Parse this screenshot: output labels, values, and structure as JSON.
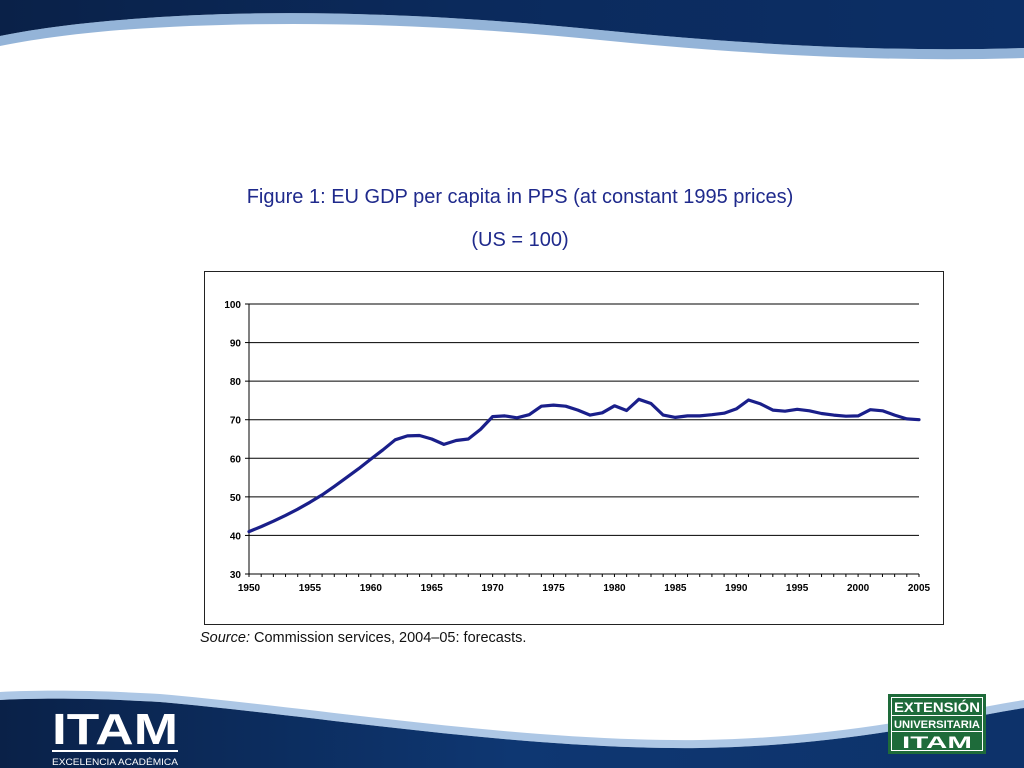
{
  "title_line1": "Figure 1: EU GDP per capita in PPS (at constant 1995 prices)",
  "title_line2": "(US = 100)",
  "source_prefix": "Source:",
  "source_text": " Commission services, 2004–05: forecasts.",
  "logo_left": {
    "word": "ITAM",
    "tagline": "EXCELENCIA ACADÉMICA"
  },
  "logo_right": {
    "line1": "EXTENSIÓN",
    "line2": "UNIVERSITARIA",
    "line3": "ITAM"
  },
  "colors": {
    "line": "#1a1f8a",
    "title": "#1f2a8c",
    "banner_dark": "#06193a",
    "banner_mid": "#1a4e8e"
  },
  "chart_data": {
    "type": "line",
    "xlim": [
      1950,
      2005
    ],
    "ylim": [
      30,
      100
    ],
    "x_ticks": [
      1950,
      1955,
      1960,
      1965,
      1970,
      1975,
      1980,
      1985,
      1990,
      1995,
      2000,
      2005
    ],
    "y_ticks": [
      30,
      40,
      50,
      60,
      70,
      80,
      90,
      100
    ],
    "grid": true,
    "x": [
      1950,
      1951,
      1952,
      1953,
      1954,
      1955,
      1956,
      1957,
      1958,
      1959,
      1960,
      1961,
      1962,
      1963,
      1964,
      1965,
      1966,
      1967,
      1968,
      1969,
      1970,
      1971,
      1972,
      1973,
      1974,
      1975,
      1976,
      1977,
      1978,
      1979,
      1980,
      1981,
      1982,
      1983,
      1984,
      1985,
      1986,
      1987,
      1988,
      1989,
      1990,
      1991,
      1992,
      1993,
      1994,
      1995,
      1996,
      1997,
      1998,
      1999,
      2000,
      2001,
      2002,
      2003,
      2004,
      2005
    ],
    "series": [
      {
        "values": [
          41.0,
          42.3,
          43.7,
          45.2,
          46.8,
          48.6,
          50.5,
          52.7,
          55.0,
          57.3,
          59.8,
          62.2,
          64.8,
          65.8,
          65.9,
          65.0,
          63.6,
          64.6,
          65.0,
          67.5,
          70.8,
          71.0,
          70.5,
          71.3,
          73.5,
          73.8,
          73.5,
          72.5,
          71.2,
          71.8,
          73.6,
          72.4,
          75.3,
          74.2,
          71.2,
          70.6,
          71.0,
          71.0,
          71.3,
          71.7,
          72.8,
          75.1,
          74.1,
          72.5,
          72.2,
          72.7,
          72.3,
          71.6,
          71.2,
          70.9,
          71.0,
          72.6,
          72.3,
          71.2,
          70.2,
          70.0
        ]
      }
    ]
  }
}
